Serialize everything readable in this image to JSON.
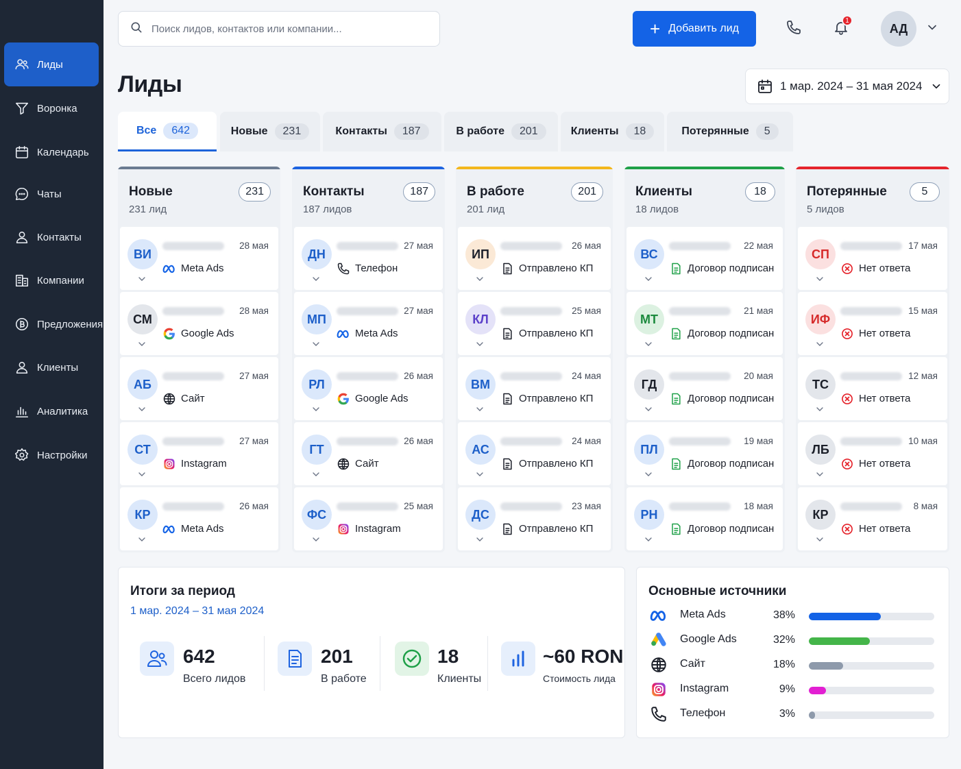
{
  "sidebar": {
    "items": [
      {
        "label": "Лиды",
        "icon": "users-icon"
      },
      {
        "label": "Воронка",
        "icon": "funnel-icon"
      },
      {
        "label": "Календарь",
        "icon": "calendar-icon"
      },
      {
        "label": "Чаты",
        "icon": "chat-icon"
      },
      {
        "label": "Контакты",
        "icon": "contact-icon"
      },
      {
        "label": "Компании",
        "icon": "building-icon"
      },
      {
        "label": "Предложения",
        "icon": "offer-icon"
      },
      {
        "label": "Клиенты",
        "icon": "clients-icon"
      },
      {
        "label": "Аналитика",
        "icon": "chart-icon"
      },
      {
        "label": "Настройки",
        "icon": "gear-icon"
      }
    ]
  },
  "topbar": {
    "search_placeholder": "Поиск лидов, контактов или компании...",
    "add_label": "Добавить лид",
    "notifications": "1",
    "avatar": "АД"
  },
  "page": {
    "title": "Лиды",
    "date_range": "1 мар. 2024 – 31 мая 2024"
  },
  "tabs": [
    {
      "label": "Все",
      "count": "642"
    },
    {
      "label": "Новые",
      "count": "231"
    },
    {
      "label": "Контакты",
      "count": "187"
    },
    {
      "label": "В работе",
      "count": "201"
    },
    {
      "label": "Клиенты",
      "count": "18"
    },
    {
      "label": "Потерянные",
      "count": "5"
    }
  ],
  "columns": [
    {
      "title": "Новые",
      "subtitle": "231 лид",
      "count": "231",
      "accent": "#6b7b91",
      "cards": [
        {
          "initials": "ВИ",
          "date": "28 мая",
          "source": "Meta Ads",
          "icon": "meta-icon",
          "avatar_bg": "#dbe8fb",
          "avatar_fg": "#1d5fc9"
        },
        {
          "initials": "СМ",
          "date": "28 мая",
          "source": "Google Ads",
          "icon": "google-icon",
          "avatar_bg": "#e3e6eb",
          "avatar_fg": "#1b1f29"
        },
        {
          "initials": "АБ",
          "date": "27 мая",
          "source": "Сайт",
          "icon": "globe-icon",
          "avatar_bg": "#dbe8fb",
          "avatar_fg": "#1d5fc9"
        },
        {
          "initials": "СТ",
          "date": "27 мая",
          "source": "Instagram",
          "icon": "instagram-icon",
          "avatar_bg": "#dbe8fb",
          "avatar_fg": "#1d5fc9"
        },
        {
          "initials": "КР",
          "date": "26 мая",
          "source": "Meta Ads",
          "icon": "meta-icon",
          "avatar_bg": "#dbe8fb",
          "avatar_fg": "#1d5fc9"
        }
      ]
    },
    {
      "title": "Контакты",
      "subtitle": "187 лидов",
      "count": "187",
      "accent": "#1d63e0",
      "cards": [
        {
          "initials": "ДН",
          "date": "27 мая",
          "source": "Телефон",
          "icon": "phone-icon",
          "avatar_bg": "#dbe8fb",
          "avatar_fg": "#1d5fc9"
        },
        {
          "initials": "МП",
          "date": "27 мая",
          "source": "Meta Ads",
          "icon": "meta-icon",
          "avatar_bg": "#dbe8fb",
          "avatar_fg": "#1d5fc9"
        },
        {
          "initials": "РЛ",
          "date": "26 мая",
          "source": "Google Ads",
          "icon": "google-icon",
          "avatar_bg": "#dbe8fb",
          "avatar_fg": "#1d5fc9"
        },
        {
          "initials": "ГТ",
          "date": "26 мая",
          "source": "Сайт",
          "icon": "globe-icon",
          "avatar_bg": "#dbe8fb",
          "avatar_fg": "#1d5fc9"
        },
        {
          "initials": "ФС",
          "date": "25 мая",
          "source": "Instagram",
          "icon": "instagram-icon",
          "avatar_bg": "#dbe8fb",
          "avatar_fg": "#1d5fc9"
        }
      ]
    },
    {
      "title": "В работе",
      "subtitle": "201 лид",
      "count": "201",
      "accent": "#f3b71c",
      "cards": [
        {
          "initials": "ИП",
          "date": "26 мая",
          "source": "Отправлено КП",
          "icon": "document-icon",
          "avatar_bg": "#fbe9d6",
          "avatar_fg": "#1b1f29"
        },
        {
          "initials": "КЛ",
          "date": "25 мая",
          "source": "Отправлено КП",
          "icon": "document-icon",
          "avatar_bg": "#e4e2f8",
          "avatar_fg": "#5b3fc9"
        },
        {
          "initials": "ВМ",
          "date": "24 мая",
          "source": "Отправлено КП",
          "icon": "document-icon",
          "avatar_bg": "#dbe8fb",
          "avatar_fg": "#1d5fc9"
        },
        {
          "initials": "АС",
          "date": "24 мая",
          "source": "Отправлено КП",
          "icon": "document-icon",
          "avatar_bg": "#dbe8fb",
          "avatar_fg": "#1d5fc9"
        },
        {
          "initials": "ДС",
          "date": "23 мая",
          "source": "Отправлено КП",
          "icon": "document-icon",
          "avatar_bg": "#dbe8fb",
          "avatar_fg": "#1d5fc9"
        }
      ]
    },
    {
      "title": "Клиенты",
      "subtitle": "18 лидов",
      "count": "18",
      "accent": "#1fa048",
      "cards": [
        {
          "initials": "ВС",
          "date": "22 мая",
          "source": "Договор подписан",
          "icon": "contract-icon",
          "avatar_bg": "#dbe8fb",
          "avatar_fg": "#1d5fc9"
        },
        {
          "initials": "МТ",
          "date": "21 мая",
          "source": "Договор подписан",
          "icon": "contract-icon",
          "avatar_bg": "#dcf1e1",
          "avatar_fg": "#1b8a3d"
        },
        {
          "initials": "ГД",
          "date": "20 мая",
          "source": "Договор подписан",
          "icon": "contract-icon",
          "avatar_bg": "#e3e6eb",
          "avatar_fg": "#1b1f29"
        },
        {
          "initials": "ПЛ",
          "date": "19 мая",
          "source": "Договор подписан",
          "icon": "contract-icon",
          "avatar_bg": "#dbe8fb",
          "avatar_fg": "#1d5fc9"
        },
        {
          "initials": "РН",
          "date": "18 мая",
          "source": "Договор подписан",
          "icon": "contract-icon",
          "avatar_bg": "#dbe8fb",
          "avatar_fg": "#1d5fc9"
        }
      ]
    },
    {
      "title": "Потерянные",
      "subtitle": "5 лидов",
      "count": "5",
      "accent": "#e5242c",
      "cards": [
        {
          "initials": "СП",
          "date": "17 мая",
          "source": "Нет ответа",
          "icon": "x-circle-icon",
          "avatar_bg": "#fbe0e0",
          "avatar_fg": "#d62a2a"
        },
        {
          "initials": "ИФ",
          "date": "15 мая",
          "source": "Нет ответа",
          "icon": "x-circle-icon",
          "avatar_bg": "#fbe0e0",
          "avatar_fg": "#d62a2a"
        },
        {
          "initials": "ТС",
          "date": "12 мая",
          "source": "Нет ответа",
          "icon": "x-circle-icon",
          "avatar_bg": "#e3e6eb",
          "avatar_fg": "#1b1f29"
        },
        {
          "initials": "ЛБ",
          "date": "10 мая",
          "source": "Нет ответа",
          "icon": "x-circle-icon",
          "avatar_bg": "#e3e6eb",
          "avatar_fg": "#1b1f29"
        },
        {
          "initials": "КР",
          "date": "8 мая",
          "source": "Нет ответа",
          "icon": "x-circle-icon",
          "avatar_bg": "#e3e6eb",
          "avatar_fg": "#1b1f29"
        }
      ]
    }
  ],
  "summary": {
    "title": "Итоги за период",
    "period": "1 мар. 2024 – 31 мая 2024",
    "stats": [
      {
        "value": "642",
        "label": "Всего лидов",
        "icon": "users-icon"
      },
      {
        "value": "201",
        "label": "В работе",
        "icon": "document-icon"
      },
      {
        "value": "18",
        "label": "Клиенты",
        "icon": "check-circle-icon"
      },
      {
        "value": "~60 RON",
        "label": "Стоимость лида",
        "icon": "bars-icon"
      }
    ]
  },
  "sources": {
    "title": "Основные источники",
    "items": [
      {
        "name": "Meta Ads",
        "percent_label": "38%",
        "percent": 38,
        "color": "#1463e6",
        "icon": "meta-icon"
      },
      {
        "name": "Google Ads",
        "percent_label": "32%",
        "percent": 32,
        "color": "#44b549",
        "icon": "google-ads-icon"
      },
      {
        "name": "Сайт",
        "percent_label": "18%",
        "percent": 18,
        "color": "#8e9aab",
        "icon": "globe-icon"
      },
      {
        "name": "Instagram",
        "percent_label": "9%",
        "percent": 9,
        "color": "#e21fd2",
        "icon": "instagram-icon"
      },
      {
        "name": "Телефон",
        "percent_label": "3%",
        "percent": 3,
        "color": "#8e9aab",
        "icon": "phone-icon"
      }
    ]
  }
}
